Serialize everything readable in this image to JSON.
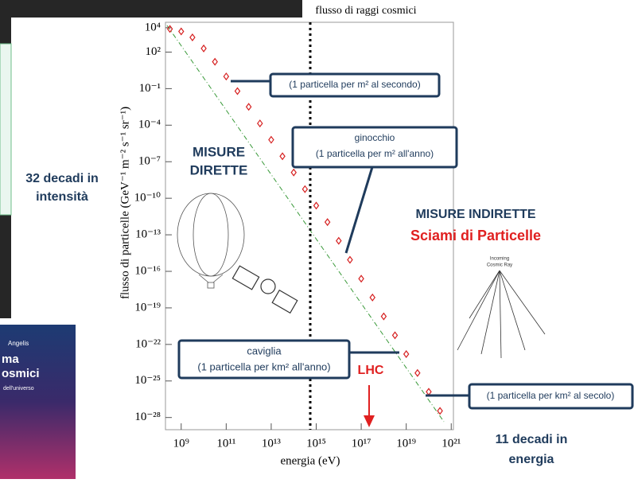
{
  "chart_data": {
    "type": "scatter",
    "title": "flusso di raggi cosmici",
    "xlabel": "energia (eV)",
    "ylabel": "flusso di particelle (GeV⁻¹ m⁻² s⁻¹ sr⁻¹)",
    "xscale": "log",
    "yscale": "log",
    "color": "#d62020",
    "xlim": [
      200000000.0,
      1.25e+21
    ],
    "ylim": [
      28000.0,
      1e-29
    ],
    "xticks": [
      {
        "value": 1000000000.0,
        "label": "10⁹"
      },
      {
        "value": 100000000000.0,
        "label": "10¹¹"
      },
      {
        "value": 10000000000000.0,
        "label": "10¹³"
      },
      {
        "value": 1000000000000000.0,
        "label": "10¹⁵"
      },
      {
        "value": 1e+17,
        "label": "10¹⁷"
      },
      {
        "value": 1e+19,
        "label": "10¹⁹"
      },
      {
        "value": 1e+21,
        "label": "10²¹"
      }
    ],
    "yticks": [
      {
        "value": 10000.0,
        "label": "10⁴"
      },
      {
        "value": 100.0,
        "label": "10²"
      },
      {
        "value": 0.1,
        "label": "10⁻¹"
      },
      {
        "value": 0.0001,
        "label": "10⁻⁴"
      },
      {
        "value": 1e-07,
        "label": "10⁻⁷"
      },
      {
        "value": 1e-10,
        "label": "10⁻¹⁰"
      },
      {
        "value": 1e-13,
        "label": "10⁻¹³"
      },
      {
        "value": 1e-16,
        "label": "10⁻¹⁶"
      },
      {
        "value": 1e-19,
        "label": "10⁻¹⁹"
      },
      {
        "value": 1e-22,
        "label": "10⁻²²"
      },
      {
        "value": 1e-25,
        "label": "10⁻²⁵"
      },
      {
        "value": 1e-28,
        "label": "10⁻²⁸"
      }
    ],
    "x": [
      316000000.0,
      1000000000.0,
      3160000000.0,
      10000000000.0,
      31600000000.0,
      100000000000.0,
      316000000000.0,
      1000000000000.0,
      3160000000000.0,
      10000000000000.0,
      31600000000000.0,
      100000000000000.0,
      316000000000000.0,
      1000000000000000.0,
      3160000000000000.0,
      1e+16,
      3.16e+16,
      1e+17,
      3.16e+17,
      1e+18,
      3.16e+18,
      1e+19,
      3.16e+19,
      1e+20,
      3.16e+20
    ],
    "values": [
      7900.0,
      5000.0,
      1600.0,
      200.0,
      16,
      1,
      0.063,
      0.0032,
      0.00014,
      6.3e-06,
      2.8e-07,
      1.3e-08,
      5.6e-10,
      2.5e-11,
      1.1e-12,
      3.2e-14,
      8.9e-16,
      2.5e-17,
      7.1e-19,
      2e-20,
      5.6e-22,
      1.6e-23,
      4.5e-25,
      1.3e-26,
      3.5e-28
    ],
    "annotations": [
      "32 decadi in",
      "intensità",
      "MISURE",
      "DIRETTE",
      "MISURE INDIRETTE",
      "Sciami di Particelle",
      "(1 particella per m² al secondo)",
      "ginocchio",
      "(1 particella per m² all'anno)",
      "caviglia",
      "(1 particella per km² all'anno)",
      "LHC",
      "(1 particella per km² al secolo)",
      "11 decadi in",
      "energia",
      "Incoming",
      "Cosmic Ray"
    ]
  },
  "book": {
    "author": "Angelis",
    "title_lines": [
      "ma",
      "osmici"
    ],
    "subtitle": "dell'universo"
  }
}
